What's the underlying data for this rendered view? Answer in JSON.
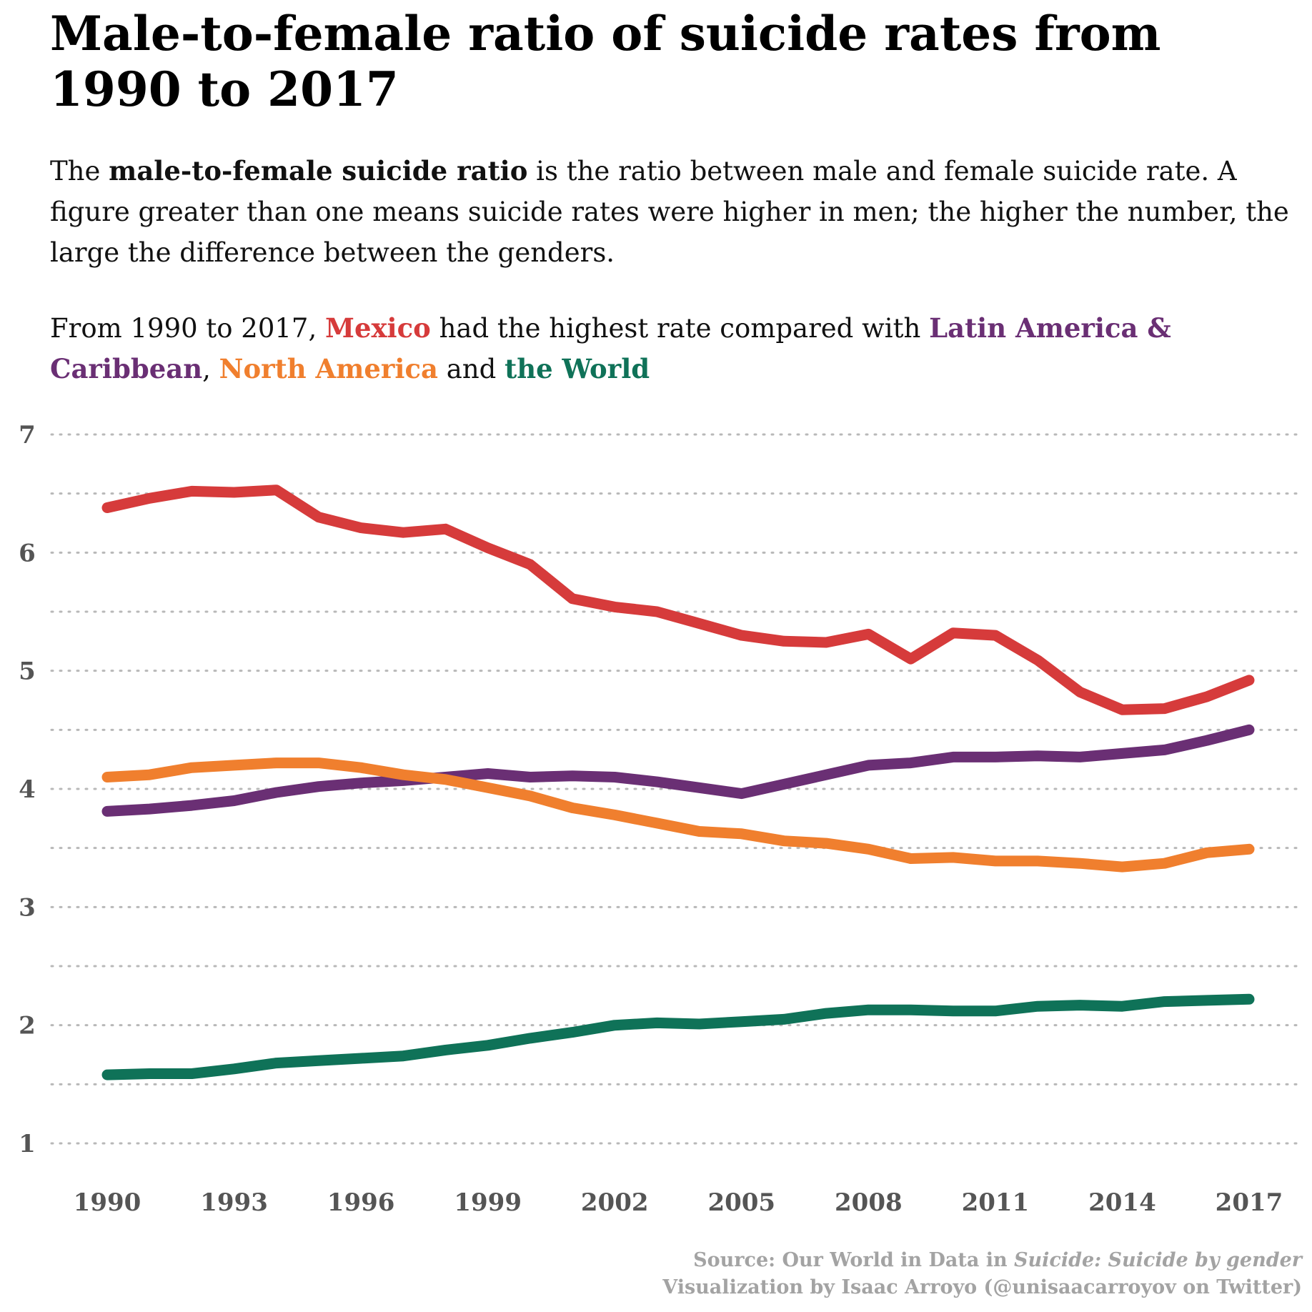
{
  "title": "Male-to-female ratio of suicide rates from 1990 to 2017",
  "description": {
    "pre": "The ",
    "bold": "male-to-female suicide ratio",
    "post": " is the ratio between male and female suicide rate. A figure greater than one means suicide rates were higher in men; the higher the number, the large the difference between the genders."
  },
  "summary": {
    "pre": "From 1990 to 2017, ",
    "mexico": "Mexico",
    "mid1": " had the highest rate compared with ",
    "latam": "Latin America & Caribbean",
    "sep": ", ",
    "northam": "North America",
    "mid2": " and ",
    "world": "the World"
  },
  "colors": {
    "mexico": "#d63b3b",
    "latam": "#6a2f74",
    "northam": "#f07f2e",
    "world": "#0f7258",
    "grid": "#b8b8b8",
    "tick": "#555555",
    "caption": "#a3a3a3"
  },
  "chart_data": {
    "type": "line",
    "x": [
      1990,
      1991,
      1992,
      1993,
      1994,
      1995,
      1996,
      1997,
      1998,
      1999,
      2000,
      2001,
      2002,
      2003,
      2004,
      2005,
      2006,
      2007,
      2008,
      2009,
      2010,
      2011,
      2012,
      2013,
      2014,
      2015,
      2016,
      2017
    ],
    "xticks": [
      1990,
      1993,
      1996,
      1999,
      2002,
      2005,
      2008,
      2011,
      2014,
      2017
    ],
    "yticks": [
      1,
      2,
      3,
      4,
      5,
      6,
      7
    ],
    "ylim": [
      1,
      7
    ],
    "grid": "horizontal dotted, every 0.5",
    "legend": "none (series named in subtitle text)",
    "series": [
      {
        "name": "Mexico",
        "color": "#d63b3b",
        "values": [
          6.38,
          6.46,
          6.52,
          6.51,
          6.53,
          6.3,
          6.21,
          6.17,
          6.2,
          6.04,
          5.9,
          5.61,
          5.54,
          5.5,
          5.4,
          5.3,
          5.25,
          5.24,
          5.31,
          5.1,
          5.32,
          5.3,
          5.09,
          4.82,
          4.67,
          4.68,
          4.78,
          4.92
        ]
      },
      {
        "name": "Latin America & Caribbean",
        "color": "#6a2f74",
        "values": [
          3.81,
          3.83,
          3.86,
          3.9,
          3.97,
          4.02,
          4.05,
          4.07,
          4.1,
          4.13,
          4.1,
          4.11,
          4.1,
          4.06,
          4.01,
          3.96,
          4.04,
          4.12,
          4.2,
          4.22,
          4.27,
          4.27,
          4.28,
          4.27,
          4.3,
          4.33,
          4.41,
          4.5
        ]
      },
      {
        "name": "North America",
        "color": "#f07f2e",
        "values": [
          4.1,
          4.12,
          4.18,
          4.2,
          4.22,
          4.22,
          4.18,
          4.12,
          4.08,
          4.01,
          3.94,
          3.84,
          3.78,
          3.71,
          3.64,
          3.62,
          3.56,
          3.54,
          3.49,
          3.41,
          3.42,
          3.39,
          3.39,
          3.37,
          3.34,
          3.37,
          3.46,
          3.49
        ]
      },
      {
        "name": "the World",
        "color": "#0f7258",
        "values": [
          1.58,
          1.59,
          1.59,
          1.63,
          1.68,
          1.7,
          1.72,
          1.74,
          1.79,
          1.83,
          1.89,
          1.94,
          2.0,
          2.02,
          2.01,
          2.03,
          2.05,
          2.1,
          2.13,
          2.13,
          2.12,
          2.12,
          2.16,
          2.17,
          2.16,
          2.2,
          2.21,
          2.22
        ]
      }
    ]
  },
  "caption": {
    "source_pre": "Source: Our World in Data in ",
    "source_italic": "Suicide: Suicide by gender",
    "credit": "Visualization by Isaac Arroyo (@unisaacarroyov on Twitter)"
  }
}
